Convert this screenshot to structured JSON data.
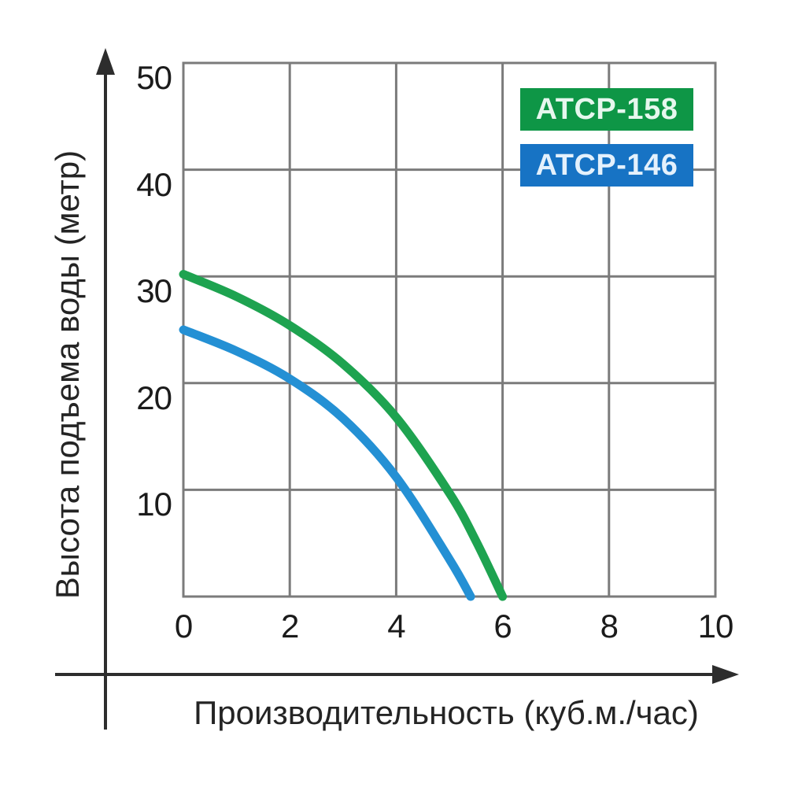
{
  "chart_data": {
    "type": "line",
    "title": "",
    "xlabel": "Производительность (куб.м./час)",
    "ylabel": "Высота подъема воды (метр)",
    "xlim": [
      0,
      10
    ],
    "ylim": [
      0,
      50
    ],
    "x_ticks": [
      0,
      2,
      4,
      6,
      8,
      10
    ],
    "y_ticks": [
      10,
      20,
      30,
      40,
      50
    ],
    "grid": true,
    "grid_color": "#7b7b7b",
    "axis_color": "#2d2d2d",
    "tick_label_color": "#1b1b1b",
    "legend_position": "top-right",
    "series": [
      {
        "name": "ATCP-158",
        "color": "#1ea350",
        "legend_bg": "#0e9646",
        "legend_text_color": "#e6f7ee",
        "points": [
          [
            0,
            30.2
          ],
          [
            1,
            28.1
          ],
          [
            2,
            25.4
          ],
          [
            3,
            21.8
          ],
          [
            4,
            16.8
          ],
          [
            5,
            9.7
          ],
          [
            5.5,
            5.2
          ],
          [
            6,
            0
          ]
        ]
      },
      {
        "name": "ATCP-146",
        "color": "#2490d4",
        "legend_bg": "#1773c4",
        "legend_text_color": "#e4f1fc",
        "points": [
          [
            0,
            25
          ],
          [
            1,
            23
          ],
          [
            2,
            20.4
          ],
          [
            3,
            16.7
          ],
          [
            4,
            11.2
          ],
          [
            5,
            3.5
          ],
          [
            5.4,
            0
          ]
        ]
      }
    ]
  }
}
